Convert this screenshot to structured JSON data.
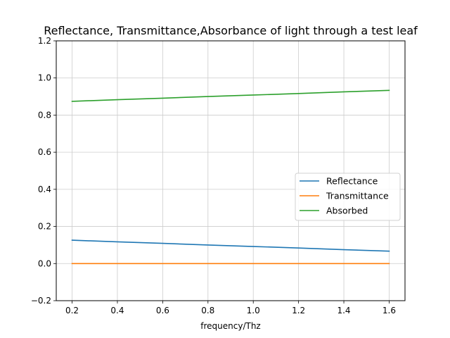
{
  "chart_data": {
    "type": "line",
    "title": "Reflectance, Transmittance,Absorbance of light through a test leaf",
    "xlabel": "frequency/Thz",
    "ylabel": "",
    "xlim": [
      0.13,
      1.67
    ],
    "ylim": [
      -0.2,
      1.2
    ],
    "xticks": [
      0.2,
      0.4,
      0.6,
      0.8,
      1.0,
      1.2,
      1.4,
      1.6
    ],
    "xtick_labels": [
      "0.2",
      "0.4",
      "0.6",
      "0.8",
      "1.0",
      "1.2",
      "1.4",
      "1.6"
    ],
    "yticks": [
      -0.2,
      0.0,
      0.2,
      0.4,
      0.6,
      0.8,
      1.0,
      1.2
    ],
    "ytick_labels": [
      "−0.2",
      "0.0",
      "0.2",
      "0.4",
      "0.6",
      "0.8",
      "1.0",
      "1.2"
    ],
    "grid": true,
    "legend_position": "center-right",
    "x": [
      0.2,
      0.4,
      0.6,
      0.8,
      1.0,
      1.2,
      1.4,
      1.6
    ],
    "series": [
      {
        "name": "Reflectance",
        "color": "#1f77b4",
        "values": [
          0.126,
          0.117,
          0.109,
          0.1,
          0.092,
          0.084,
          0.075,
          0.067
        ]
      },
      {
        "name": "Transmittance",
        "color": "#ff7f0e",
        "values": [
          0.0,
          0.0,
          0.0,
          0.0,
          0.0,
          0.0,
          0.0,
          0.0
        ]
      },
      {
        "name": "Absorbed",
        "color": "#2ca02c",
        "values": [
          0.874,
          0.883,
          0.891,
          0.9,
          0.908,
          0.916,
          0.925,
          0.933
        ]
      }
    ]
  }
}
